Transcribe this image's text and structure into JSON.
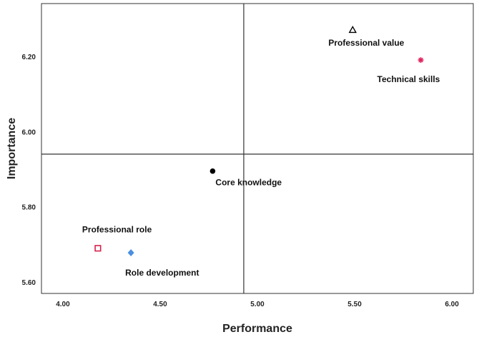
{
  "chart_data": {
    "type": "scatter",
    "xlabel": "Performance",
    "ylabel": "Importance",
    "xlim": [
      3.89,
      6.11
    ],
    "ylim": [
      5.57,
      6.34
    ],
    "x_ticks": [
      "4.00",
      "4.50",
      "5.00",
      "5.50",
      "6.00"
    ],
    "x_tick_values": [
      4.0,
      4.5,
      5.0,
      5.5,
      6.0
    ],
    "y_ticks": [
      "6.20",
      "6.00",
      "5.80",
      "5.60"
    ],
    "y_tick_values": [
      6.2,
      6.0,
      5.8,
      5.6
    ],
    "reference_lines": {
      "x": 4.93,
      "y": 5.94
    },
    "grid": false,
    "legend": "none",
    "points": [
      {
        "label": "Professional value",
        "x": 5.49,
        "y": 6.27,
        "marker": "triangle-open",
        "color": "#000000"
      },
      {
        "label": "Technical skills",
        "x": 5.84,
        "y": 6.19,
        "marker": "star",
        "color": "#e0245e"
      },
      {
        "label": "Core knowledge",
        "x": 4.77,
        "y": 5.895,
        "marker": "circle",
        "color": "#000000"
      },
      {
        "label": "Professional role",
        "x": 4.18,
        "y": 5.69,
        "marker": "square-open",
        "color": "#d6214a"
      },
      {
        "label": "Role development",
        "x": 4.35,
        "y": 5.678,
        "marker": "diamond",
        "color": "#4a90e2"
      }
    ]
  }
}
